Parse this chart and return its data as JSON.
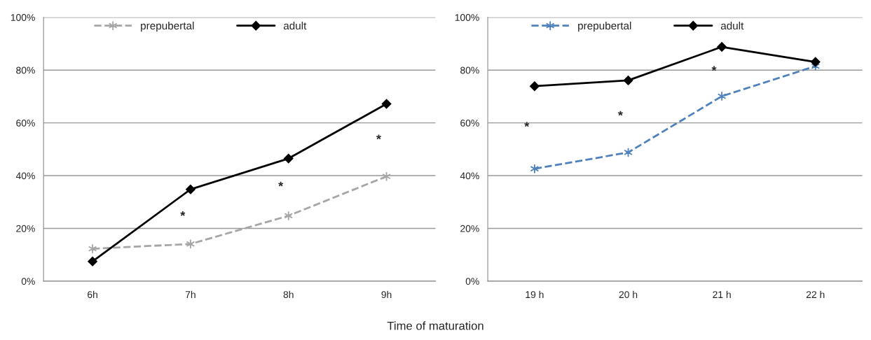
{
  "chart_data": [
    {
      "type": "line",
      "xlabel": "Time of maturation",
      "categories": [
        "6h",
        "7h",
        "8h",
        "9h"
      ],
      "series": [
        {
          "name": "prepubertal",
          "color": "#a6a6a6",
          "values": [
            12.3,
            14.1,
            24.8,
            39.7
          ],
          "marker": "cross",
          "line_style": "dashed"
        },
        {
          "name": "adult",
          "color": "#000000",
          "values": [
            7.5,
            34.8,
            46.5,
            67.2
          ],
          "marker": "diamond",
          "line_style": "solid"
        }
      ],
      "ylim": [
        0,
        100
      ],
      "yticks": [
        {
          "value": 0,
          "label": "0%"
        },
        {
          "value": 20,
          "label": "20%"
        },
        {
          "value": 40,
          "label": "40%"
        },
        {
          "value": 60,
          "label": "60%"
        },
        {
          "value": 80,
          "label": "80%"
        },
        {
          "value": 100,
          "label": "100%"
        }
      ],
      "grid": "y",
      "legend": "top",
      "annotations": [
        "*",
        "*",
        "*"
      ]
    },
    {
      "type": "line",
      "categories": [
        "19 h",
        "20 h",
        "21 h",
        "22 h"
      ],
      "series": [
        {
          "name": "prepubertal",
          "color": "#4f81bd",
          "values": [
            42.6,
            48.8,
            70.1,
            81.5
          ],
          "marker": "cross",
          "line_style": "dashed"
        },
        {
          "name": "adult",
          "color": "#000000",
          "values": [
            73.9,
            76.1,
            88.8,
            83.1
          ],
          "marker": "diamond",
          "line_style": "solid"
        }
      ],
      "ylim": [
        0,
        100
      ],
      "yticks": [
        {
          "value": 0,
          "label": "0%"
        },
        {
          "value": 20,
          "label": "20%"
        },
        {
          "value": 40,
          "label": "40%"
        },
        {
          "value": 60,
          "label": "60%"
        },
        {
          "value": 80,
          "label": "80%"
        },
        {
          "value": 100,
          "label": "100%"
        }
      ],
      "grid": "y",
      "legend": "top",
      "annotations": [
        "*",
        "*",
        "*"
      ]
    }
  ]
}
